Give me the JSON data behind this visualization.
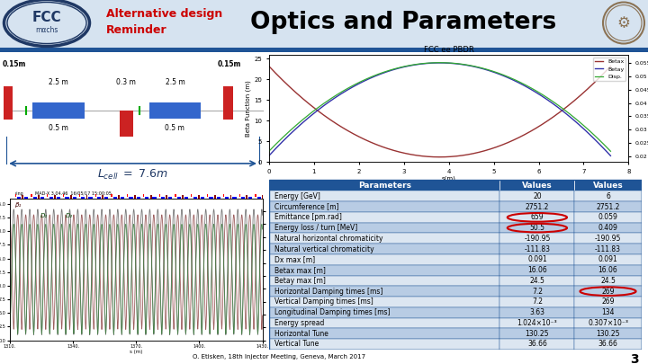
{
  "title_main": "Optics and Parameters",
  "title_sub1": "Alternative design",
  "title_sub2": "Reminder",
  "bg_color": "#ffffff",
  "header_bg": "#dce6f1",
  "table_header_bg": "#1f5496",
  "table_header_fg": "#ffffff",
  "table_row_light": "#dce6f1",
  "table_row_alt": "#b8cce4",
  "table_border": "#1f5496",
  "circle_color": "#cc0000",
  "parameters": [
    "Energy [GeV]",
    "Circumference [m]",
    "Emittance [pm.rad]",
    "Energy loss / turn [MeV]",
    "Natural horizontal chromaticity",
    "Natural vertical chromaticity",
    "Dx max [m]",
    "Betax max [m]",
    "Betay max [m]",
    "Horizontal Damping times [ms]",
    "Vertical Damping times [ms]",
    "Longitudinal Damping times [ms]",
    "Energy spread",
    "Horizontal Tune",
    "Vertical Tune"
  ],
  "values1": [
    "20",
    "2751.2",
    "659",
    "50.5",
    "-190.95",
    "-111.83",
    "0.091",
    "16.06",
    "24.5",
    "7.2",
    "7.2",
    "3.63",
    "1.024x10^-3",
    "130.25",
    "36.66"
  ],
  "values2": [
    "6",
    "2751.2",
    "0.059",
    "0.409",
    "-190.95",
    "-111.83",
    "0.091",
    "16.06",
    "24.5",
    "269",
    "269",
    "134",
    "0.307x10^-3",
    "130.25",
    "36.66"
  ],
  "circle_v1": [
    2,
    3
  ],
  "circle_v2": [
    9
  ],
  "footer_text": "O. Etisken, 18th Injector Meeting, Geneva, March 2017",
  "slide_number": "3",
  "optics_label": "FCC ee PBDR",
  "red_color": "#cc0000",
  "blue_color": "#4472c4",
  "dark_blue": "#1f5496"
}
